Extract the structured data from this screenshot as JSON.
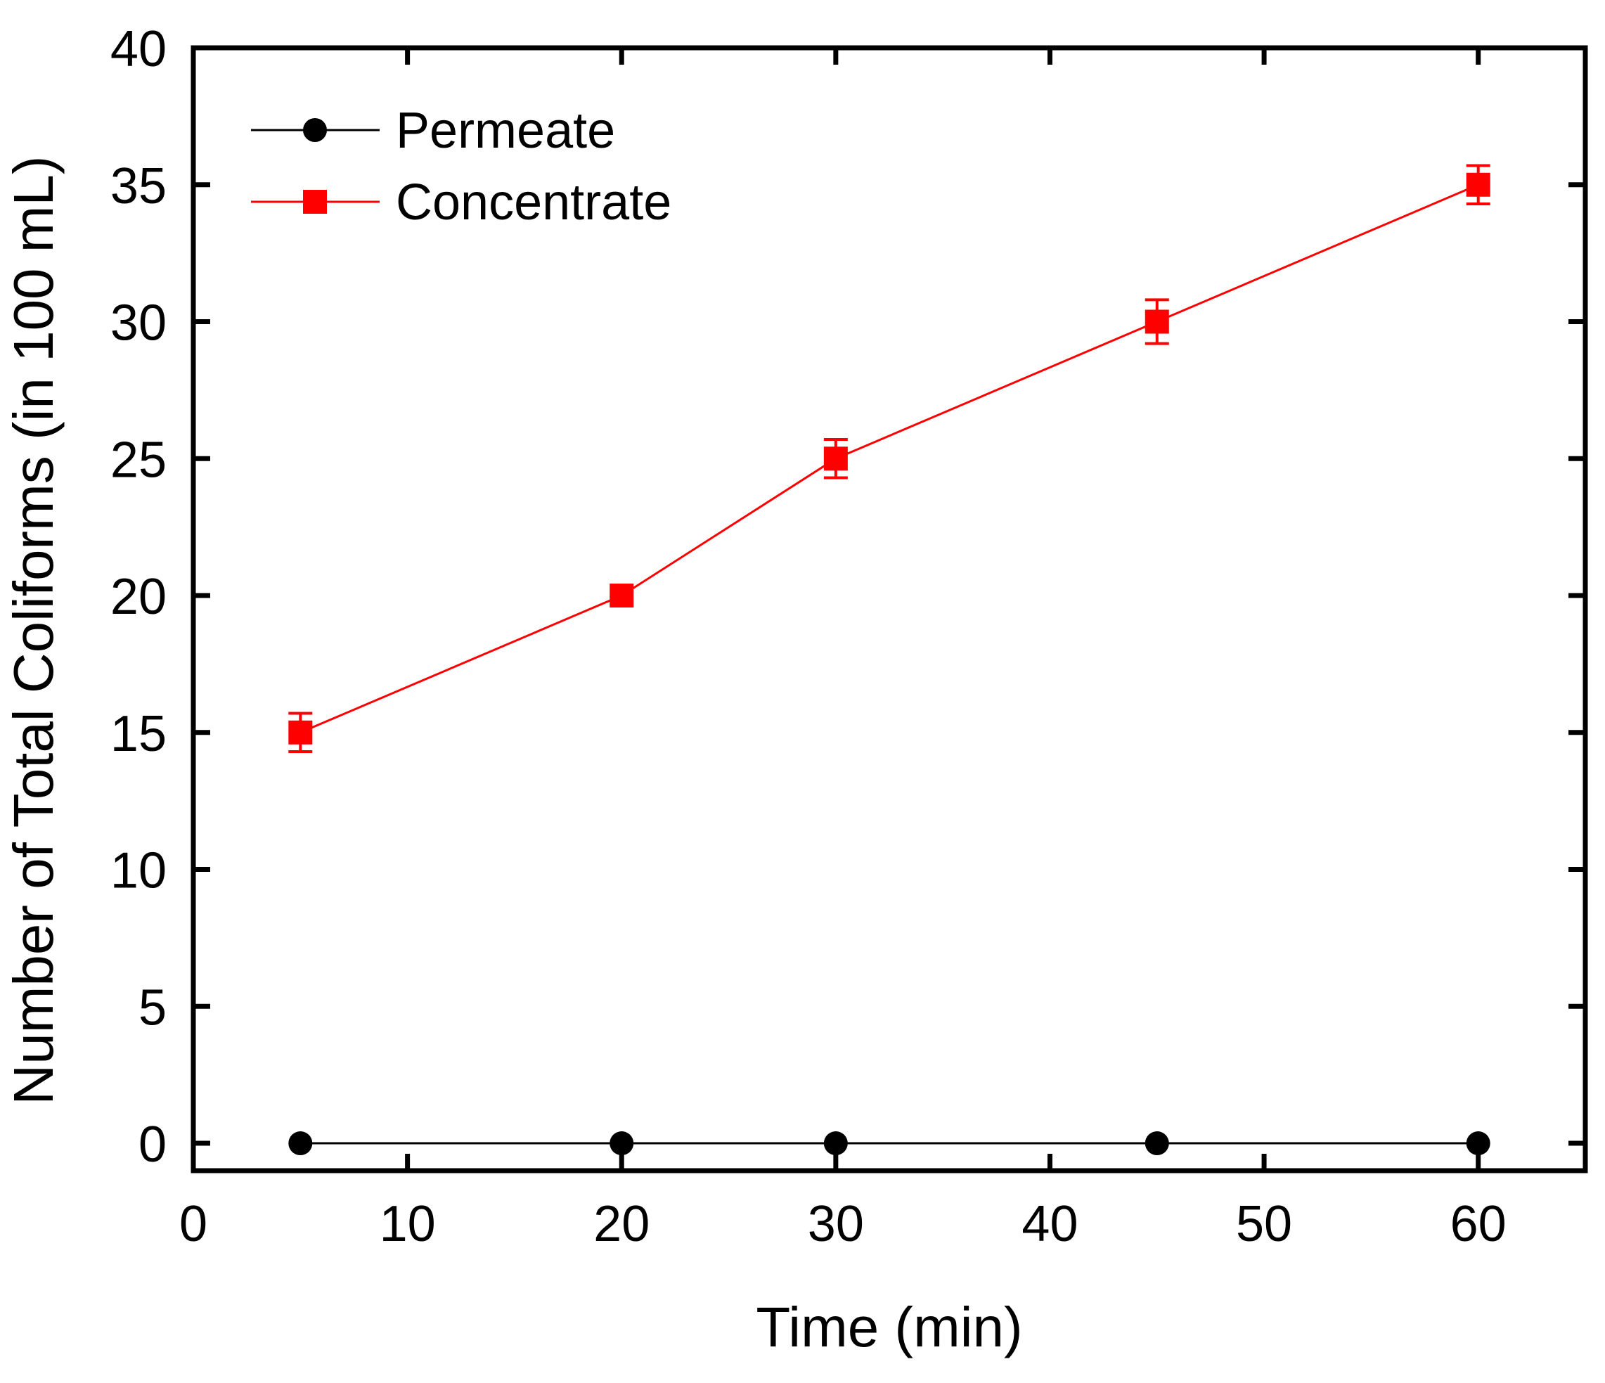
{
  "chart_data": {
    "type": "line",
    "title": "",
    "xlabel": "Time (min)",
    "ylabel": "Number of Total Coliforms (in 100 mL)",
    "xlim": [
      0,
      65
    ],
    "ylim": [
      -1,
      40
    ],
    "xticks": [
      0,
      10,
      20,
      30,
      40,
      50,
      60
    ],
    "yticks": [
      0,
      5,
      10,
      15,
      20,
      25,
      30,
      35,
      40
    ],
    "grid": false,
    "legend_position": "top-left",
    "series": [
      {
        "name": "Permeate",
        "color": "#000000",
        "marker": "circle",
        "x": [
          5,
          20,
          30,
          45,
          60
        ],
        "y": [
          0,
          0,
          0,
          0,
          0
        ],
        "error": [
          0,
          0,
          0,
          0,
          0
        ]
      },
      {
        "name": "Concentrate",
        "color": "#ff0000",
        "marker": "square",
        "x": [
          5,
          20,
          30,
          45,
          60
        ],
        "y": [
          15,
          20,
          25,
          30,
          35
        ],
        "error": [
          0.7,
          0,
          0.7,
          0.8,
          0.7
        ]
      }
    ]
  }
}
